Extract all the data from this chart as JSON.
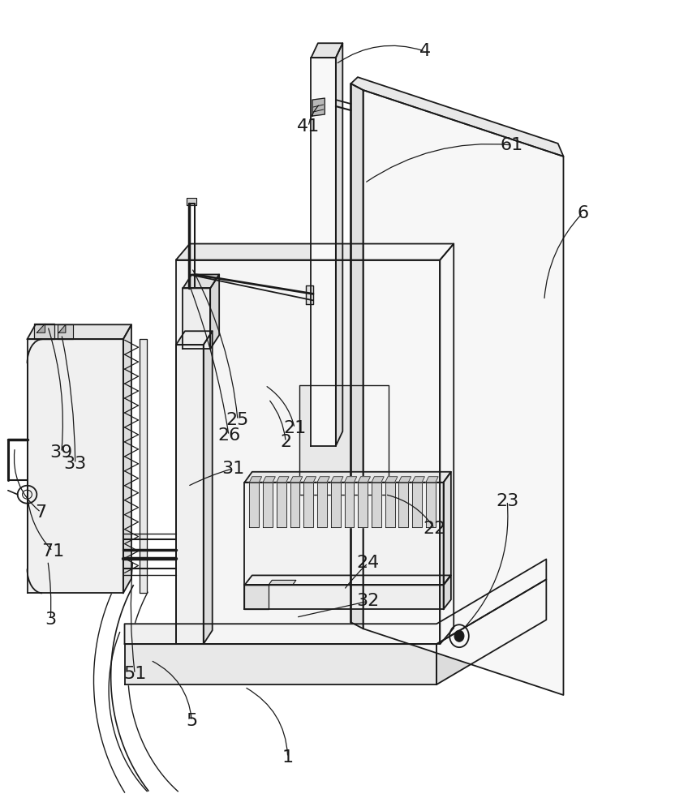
{
  "figure_width": 8.48,
  "figure_height": 10.0,
  "dpi": 100,
  "bg_color": "#ffffff",
  "line_color": "#1a1a1a",
  "line_width": 1.3,
  "label_fontsize": 16,
  "fill_front": "#f6f6f6",
  "fill_top": "#e8e8e8",
  "fill_right": "#dedede",
  "fill_dark": "#cccccc"
}
